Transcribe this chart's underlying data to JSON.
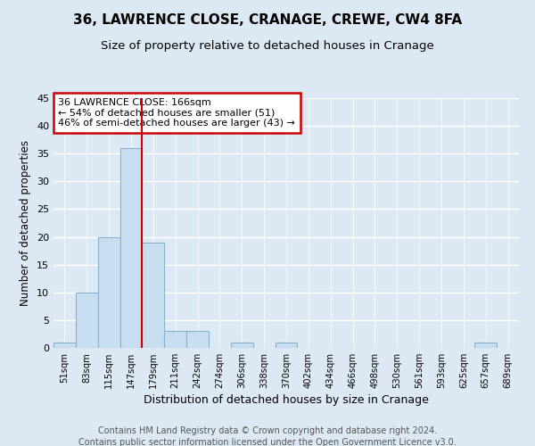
{
  "title": "36, LAWRENCE CLOSE, CRANAGE, CREWE, CW4 8FA",
  "subtitle": "Size of property relative to detached houses in Cranage",
  "xlabel": "Distribution of detached houses by size in Cranage",
  "ylabel": "Number of detached properties",
  "bin_labels": [
    "51sqm",
    "83sqm",
    "115sqm",
    "147sqm",
    "179sqm",
    "211sqm",
    "242sqm",
    "274sqm",
    "306sqm",
    "338sqm",
    "370sqm",
    "402sqm",
    "434sqm",
    "466sqm",
    "498sqm",
    "530sqm",
    "561sqm",
    "593sqm",
    "625sqm",
    "657sqm",
    "689sqm"
  ],
  "bar_values": [
    1,
    10,
    20,
    36,
    19,
    3,
    3,
    0,
    1,
    0,
    1,
    0,
    0,
    0,
    0,
    0,
    0,
    0,
    0,
    1,
    0
  ],
  "bar_color": "#c8ddef",
  "bar_edge_color": "#8ab0cc",
  "ylim": [
    0,
    45
  ],
  "yticks": [
    0,
    5,
    10,
    15,
    20,
    25,
    30,
    35,
    40,
    45
  ],
  "property_line_color": "#cc0000",
  "annotation_title": "36 LAWRENCE CLOSE: 166sqm",
  "annotation_line1": "← 54% of detached houses are smaller (51)",
  "annotation_line2": "46% of semi-detached houses are larger (43) →",
  "annotation_box_color": "#ffffff",
  "annotation_box_edge": "#cc0000",
  "footer1": "Contains HM Land Registry data © Crown copyright and database right 2024.",
  "footer2": "Contains public sector information licensed under the Open Government Licence v3.0.",
  "background_color": "#dce9f5",
  "plot_bg_color": "#dce9f5",
  "grid_color": "#ffffff",
  "title_fontsize": 11,
  "subtitle_fontsize": 9.5,
  "footer_fontsize": 7
}
